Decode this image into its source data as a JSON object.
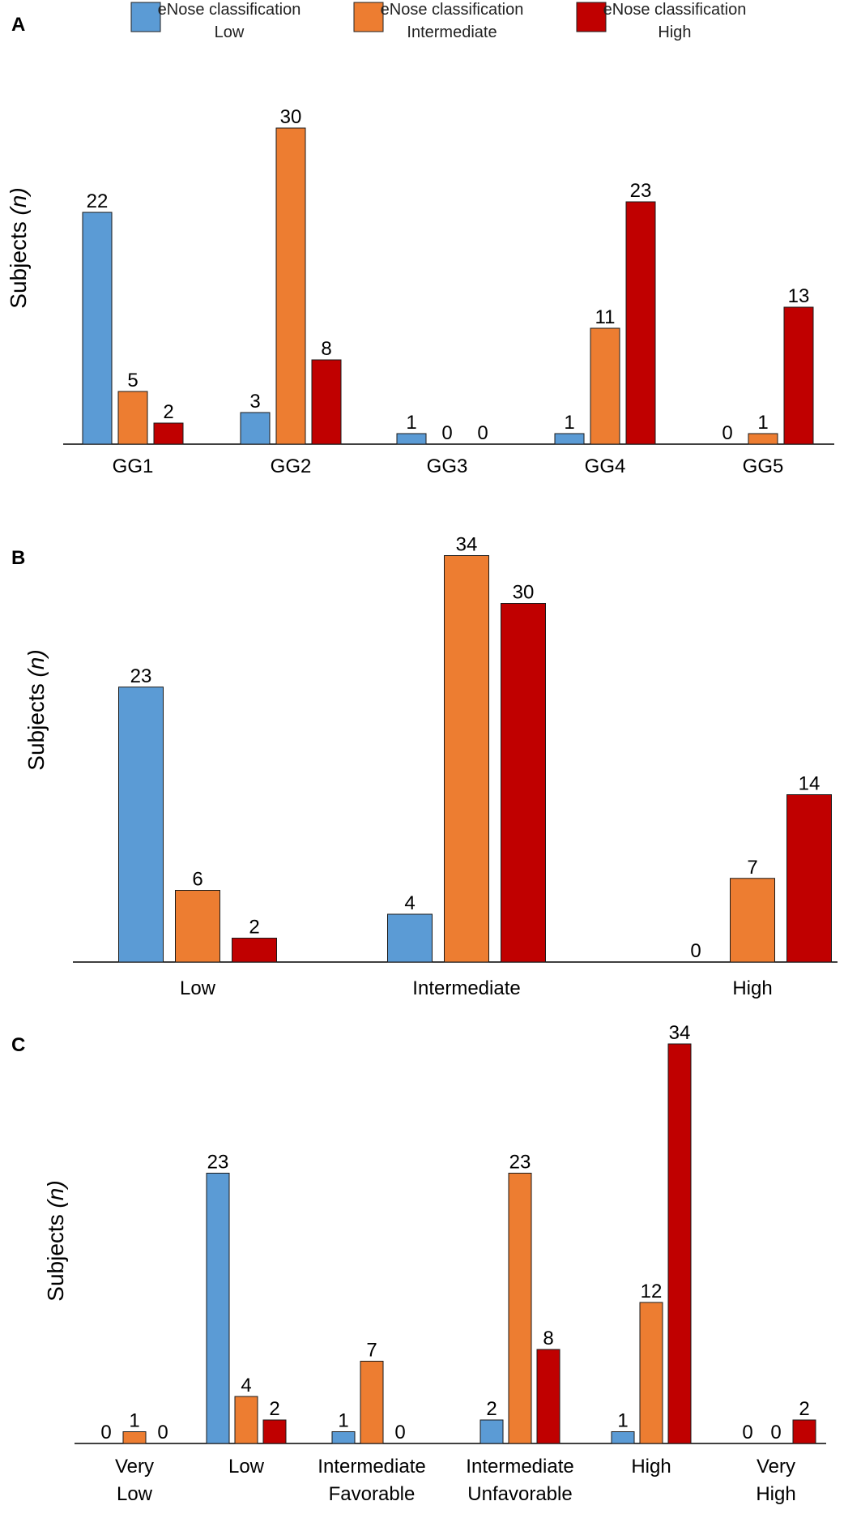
{
  "colors": {
    "low": "#5b9bd5",
    "intermediate": "#ed7d31",
    "high": "#c00000",
    "axis": "#000000"
  },
  "legend": [
    {
      "line1": "eNose classification",
      "line2": "Low",
      "color_key": "low"
    },
    {
      "line1": "eNose classification",
      "line2": "Intermediate",
      "color_key": "intermediate"
    },
    {
      "line1": "eNose classification",
      "line2": "High",
      "color_key": "high"
    }
  ],
  "chart_data": [
    {
      "panel": "A",
      "type": "bar",
      "ylabel": "Subjects",
      "ylabel_italic": "(n)",
      "ylim": [
        0,
        30
      ],
      "categories": [
        [
          "GG1"
        ],
        [
          "GG2"
        ],
        [
          "GG3"
        ],
        [
          "GG4"
        ],
        [
          "GG5"
        ]
      ],
      "series": [
        {
          "name": "eNose classification Low",
          "values": [
            22,
            3,
            1,
            1,
            0
          ]
        },
        {
          "name": "eNose classification Intermediate",
          "values": [
            5,
            30,
            0,
            11,
            1
          ]
        },
        {
          "name": "eNose classification High",
          "values": [
            2,
            8,
            0,
            23,
            13
          ]
        }
      ]
    },
    {
      "panel": "B",
      "type": "bar",
      "ylabel": "Subjects",
      "ylabel_italic": "(n)",
      "ylim": [
        0,
        34
      ],
      "categories": [
        [
          "Low"
        ],
        [
          "Intermediate"
        ],
        [
          "High"
        ]
      ],
      "series": [
        {
          "name": "eNose classification Low",
          "values": [
            23,
            4,
            0
          ]
        },
        {
          "name": "eNose classification Intermediate",
          "values": [
            6,
            34,
            7
          ]
        },
        {
          "name": "eNose classification High",
          "values": [
            2,
            30,
            14
          ]
        }
      ]
    },
    {
      "panel": "C",
      "type": "bar",
      "ylabel": "Subjects",
      "ylabel_italic": "(n)",
      "ylim": [
        0,
        34
      ],
      "categories": [
        [
          "Very",
          "Low"
        ],
        [
          "Low"
        ],
        [
          "Intermediate",
          "Favorable"
        ],
        [
          "Intermediate",
          "Unfavorable"
        ],
        [
          "High"
        ],
        [
          "Very",
          "High"
        ]
      ],
      "series": [
        {
          "name": "eNose classification Low",
          "values": [
            0,
            23,
            1,
            2,
            1,
            0
          ]
        },
        {
          "name": "eNose classification Intermediate",
          "values": [
            1,
            4,
            7,
            23,
            12,
            0
          ]
        },
        {
          "name": "eNose classification High",
          "values": [
            0,
            2,
            0,
            8,
            34,
            2
          ]
        }
      ]
    }
  ]
}
